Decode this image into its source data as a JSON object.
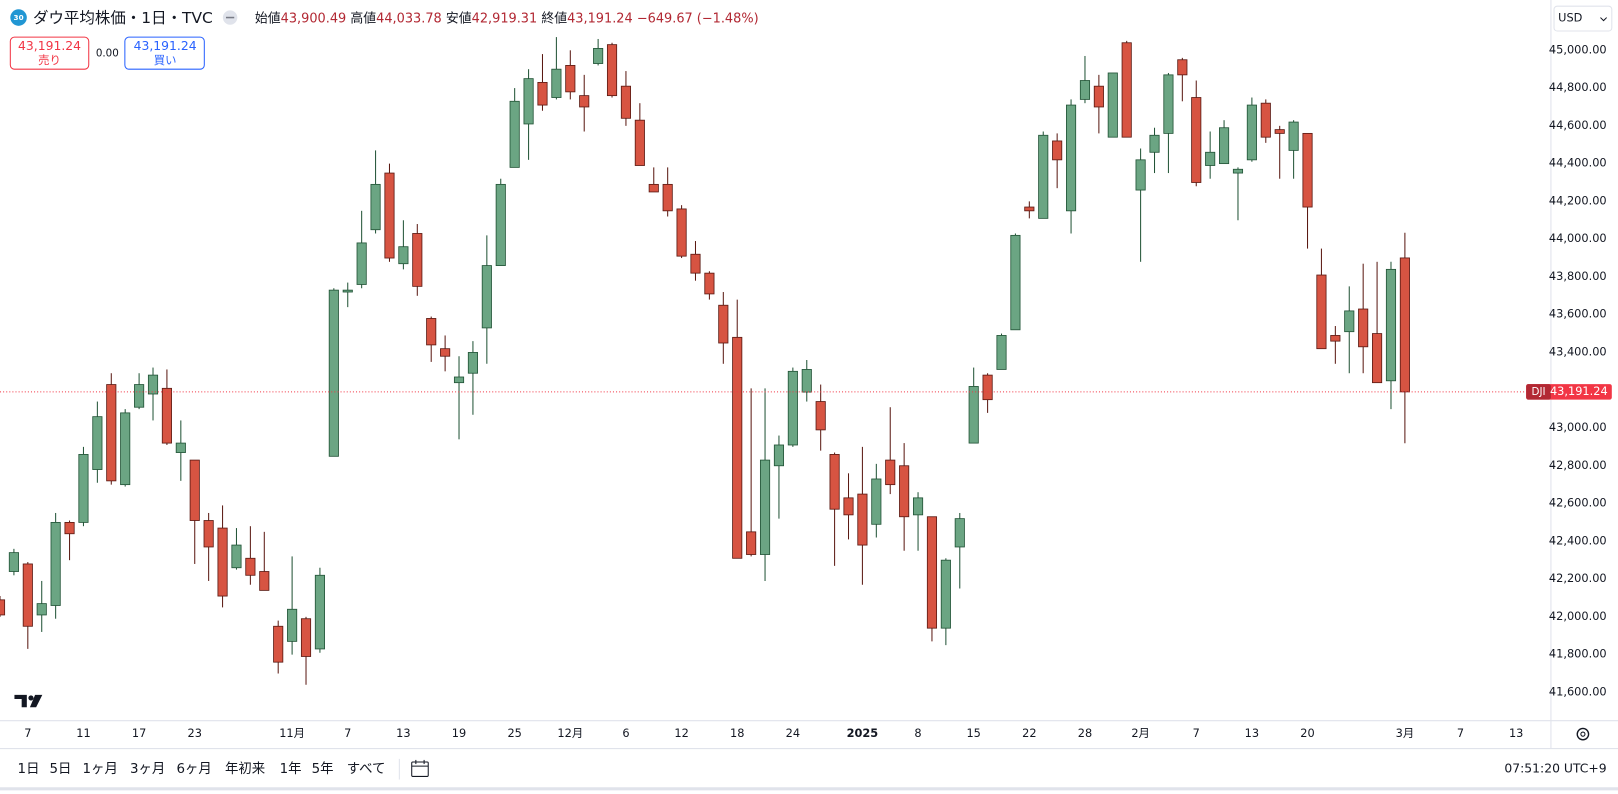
{
  "header": {
    "badge": "30",
    "symbol": "ダウ平均株価・1日・TVC",
    "ohlc": [
      {
        "label": "始値",
        "value": "43,900.49"
      },
      {
        "label": "高値",
        "value": "44,033.78"
      },
      {
        "label": "安値",
        "value": "42,919.31"
      },
      {
        "label": "終値",
        "value": "43,191.24"
      }
    ],
    "change": "−649.67 (−1.48%)"
  },
  "trade": {
    "sell_price": "43,191.24",
    "sell": "売り",
    "spread": "0.00",
    "buy_price": "43,191.24",
    "buy": "買い"
  },
  "currency": "USD",
  "price_line": {
    "symbol": "DJI",
    "label": "43,191.24",
    "value": 43191.24
  },
  "chart_data": {
    "type": "candlestick",
    "up_color": "#6ba583",
    "down_color": "#d75442",
    "categories": [
      null,
      null,
      "7",
      null,
      null,
      null,
      "11",
      null,
      null,
      null,
      "17",
      null,
      null,
      null,
      "23",
      null,
      null,
      null,
      null,
      null,
      null,
      "11月",
      null,
      null,
      null,
      "7",
      null,
      null,
      null,
      "13",
      null,
      null,
      null,
      "19",
      null,
      null,
      null,
      "25",
      null,
      null,
      null,
      "12月",
      null,
      null,
      null,
      "6",
      null,
      null,
      null,
      "12",
      null,
      null,
      null,
      "18",
      null,
      null,
      null,
      "24",
      null,
      null,
      null,
      null,
      "2025",
      null,
      null,
      null,
      "8",
      null,
      null,
      null,
      "15",
      null,
      null,
      null,
      "22",
      null,
      null,
      null,
      "28",
      null,
      null,
      null,
      "2月",
      null,
      null,
      null,
      "7",
      null,
      null,
      null,
      "13",
      null,
      null,
      null,
      "20",
      null,
      null,
      null,
      null,
      null,
      null,
      "3月",
      null,
      null,
      null,
      "7",
      null,
      null,
      null,
      "13",
      null
    ],
    "open": [
      42090,
      42240,
      42280,
      42010,
      42060,
      42500,
      42500,
      42780,
      43230,
      42700,
      43110,
      43180,
      43210,
      42870,
      42830,
      42510,
      42470,
      42260,
      42310,
      42240,
      41950,
      41870,
      41990,
      41830,
      42850,
      43720,
      43760,
      44050,
      44350,
      43870,
      44030,
      43580,
      43420,
      43240,
      43290,
      43530,
      43860,
      44380,
      44610,
      44830,
      44750,
      44920,
      44760,
      44930,
      45030,
      44810,
      44630,
      44290,
      44290,
      44160,
      43920,
      43820,
      43650,
      43480,
      42450,
      42330,
      42800,
      42910,
      43190,
      43140,
      42860,
      42630,
      42650,
      42490,
      42830,
      42800,
      42540,
      42530,
      41940,
      42370,
      42920,
      43280,
      43310,
      43520,
      44170,
      44110,
      44520,
      44150,
      44740,
      44810,
      44540,
      45040,
      44260,
      44460,
      44560,
      44950,
      44750,
      44390,
      44400,
      44350,
      44420,
      44720,
      44580,
      44470,
      44560,
      43810,
      43490,
      43510,
      43630,
      43500,
      43250,
      43900.49,
      null,
      null,
      null,
      null,
      null,
      null,
      null,
      null,
      null
    ],
    "high": [
      42110,
      42360,
      42290,
      42190,
      42550,
      42510,
      42900,
      43140,
      43290,
      43100,
      43290,
      43320,
      43310,
      43040,
      42830,
      42550,
      42590,
      42470,
      42480,
      42450,
      41980,
      42320,
      42000,
      42260,
      43740,
      43770,
      44150,
      44470,
      44400,
      44100,
      44080,
      43590,
      43490,
      43380,
      43460,
      44020,
      44320,
      44800,
      44900,
      44980,
      45070,
      45000,
      44870,
      45060,
      45040,
      44890,
      44720,
      44380,
      44380,
      44180,
      43990,
      43830,
      43720,
      43680,
      43210,
      43210,
      42960,
      43320,
      43360,
      43230,
      42870,
      42760,
      42900,
      42810,
      43110,
      42920,
      42660,
      42530,
      42310,
      42550,
      43320,
      43290,
      43500,
      44030,
      44200,
      44570,
      44560,
      44740,
      44970,
      44870,
      44880,
      45050,
      44480,
      44590,
      44880,
      44960,
      44840,
      44570,
      44630,
      44380,
      44750,
      44740,
      44600,
      44630,
      44560,
      43950,
      43540,
      43750,
      43870,
      43880,
      43880,
      44033.78,
      null,
      null,
      null,
      null,
      null,
      null,
      null,
      null,
      null
    ],
    "low": [
      42000,
      42220,
      41830,
      41920,
      41990,
      42300,
      42480,
      42710,
      42700,
      42690,
      43100,
      43040,
      42910,
      42720,
      42280,
      42190,
      42050,
      42250,
      42170,
      42140,
      41700,
      41800,
      41640,
      41810,
      42850,
      43640,
      43740,
      44030,
      43880,
      43840,
      43700,
      43350,
      43300,
      42940,
      43070,
      43340,
      43860,
      44380,
      44420,
      44680,
      44740,
      44740,
      44570,
      44920,
      44750,
      44600,
      44390,
      44250,
      44120,
      43900,
      43780,
      43680,
      43340,
      42310,
      42320,
      42190,
      42520,
      42900,
      43140,
      42880,
      42270,
      42410,
      42170,
      42420,
      42650,
      42350,
      42350,
      41870,
      41850,
      42150,
      42920,
      43080,
      43310,
      43520,
      44110,
      44110,
      44270,
      44030,
      44720,
      44560,
      44540,
      44540,
      43880,
      44350,
      44350,
      44730,
      44280,
      44320,
      44400,
      44100,
      44410,
      44510,
      44320,
      44320,
      43950,
      43420,
      43340,
      43290,
      43290,
      43240,
      43100,
      42919.31,
      null,
      null,
      null,
      null,
      null,
      null,
      null,
      null,
      null
    ],
    "close": [
      42010,
      42340,
      41950,
      42070,
      42500,
      42440,
      42860,
      43060,
      42720,
      43080,
      43230,
      43280,
      42920,
      42920,
      42510,
      42370,
      42110,
      42380,
      42220,
      42140,
      41760,
      42040,
      41790,
      42220,
      43730,
      43730,
      43980,
      44290,
      43900,
      43960,
      43750,
      43440,
      43380,
      43270,
      43400,
      43860,
      44290,
      44730,
      44850,
      44710,
      44900,
      44780,
      44700,
      45010,
      44760,
      44640,
      44390,
      44250,
      44150,
      43910,
      43820,
      43710,
      43450,
      42310,
      42330,
      42830,
      42910,
      43300,
      43310,
      42990,
      42570,
      42540,
      42380,
      42730,
      42700,
      42530,
      42630,
      41940,
      42300,
      42520,
      43220,
      43150,
      43490,
      44020,
      44150,
      44550,
      44420,
      44710,
      44840,
      44700,
      44880,
      44540,
      44420,
      44550,
      44870,
      44870,
      44300,
      44460,
      44590,
      44370,
      44710,
      44540,
      44560,
      44620,
      44170,
      43420,
      43460,
      43620,
      43430,
      43240,
      43840,
      43191.24,
      null,
      null,
      null,
      null,
      null,
      null,
      null,
      null,
      null
    ],
    "ylim": [
      41450,
      45250
    ],
    "yticks": [
      {
        "value": 41600,
        "label": "41,600.00"
      },
      {
        "value": 41800,
        "label": "41,800.00"
      },
      {
        "value": 42000,
        "label": "42,000.00"
      },
      {
        "value": 42200,
        "label": "42,200.00"
      },
      {
        "value": 42400,
        "label": "42,400.00"
      },
      {
        "value": 42600,
        "label": "42,600.00"
      },
      {
        "value": 42800,
        "label": "42,800.00"
      },
      {
        "value": 43000,
        "label": "43,000.00"
      },
      {
        "value": 43200,
        "label": "43,200.00"
      },
      {
        "value": 43400,
        "label": "43,400.00"
      },
      {
        "value": 43600,
        "label": "43,600.00"
      },
      {
        "value": 43800,
        "label": "43,800.00"
      },
      {
        "value": 44000,
        "label": "44,000.00"
      },
      {
        "value": 44200,
        "label": "44,200.00"
      },
      {
        "value": 44400,
        "label": "44,400.00"
      },
      {
        "value": 44600,
        "label": "44,600.00"
      },
      {
        "value": 44800,
        "label": "44,800.00"
      },
      {
        "value": 45000,
        "label": "45,000.00"
      }
    ],
    "grid": false
  },
  "toolbar": {
    "ranges": [
      "1日",
      "5日",
      "1ヶ月",
      "3ヶ月",
      "6ヶ月",
      "年初来",
      "1年",
      "5年",
      "すべて"
    ],
    "clock": "07:51:20 UTC+9"
  }
}
